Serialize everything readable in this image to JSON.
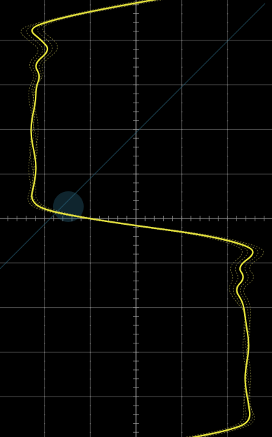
{
  "screen": {
    "background": "#000000",
    "grid_color": "#8f8f8f",
    "trace_color": "#e8e63a",
    "trace_shadow_color": "#c8c25a",
    "watermark_color": "#2b6a84"
  },
  "grid": {
    "vertical_divisions": 6,
    "horizontal_divisions": 10,
    "minor_ticks_per_division": 5
  },
  "trace": {
    "shape": "square-wave-with-ringing",
    "high_level_fraction": 0.9,
    "low_level_fraction": 0.15,
    "overlay_count": 5
  }
}
